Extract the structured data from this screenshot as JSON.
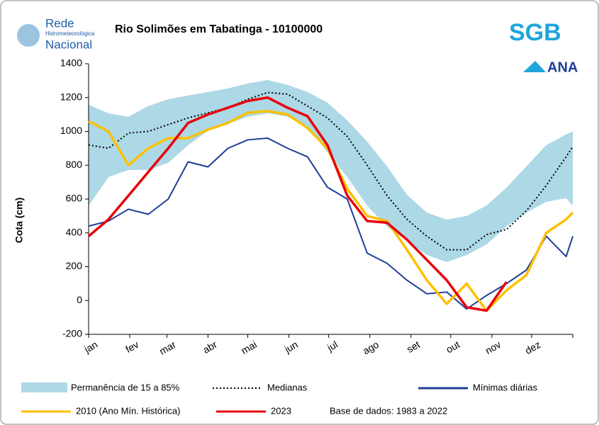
{
  "chart_data": {
    "type": "line",
    "title": "Rio Solimões em Tabatinga - 10100000",
    "y_label": "Cota (cm)",
    "note": "Base de dados: 1983 a 2022",
    "logos": {
      "rede": "Rede",
      "rede_sub": "Hidrometeorológica",
      "rede_nac": "Nacional",
      "sgb": "SGB",
      "ana": "ANA"
    },
    "x": [
      0,
      15,
      30,
      45,
      60,
      75,
      90,
      105,
      120,
      135,
      150,
      165,
      180,
      195,
      210,
      225,
      240,
      255,
      270,
      285,
      300,
      315,
      330,
      345,
      360,
      365
    ],
    "xlim": [
      0,
      365
    ],
    "xticks": [
      {
        "value": 0,
        "label": "jan"
      },
      {
        "value": 31,
        "label": "fev"
      },
      {
        "value": 59,
        "label": "mar"
      },
      {
        "value": 90,
        "label": "abr"
      },
      {
        "value": 120,
        "label": "mai"
      },
      {
        "value": 151,
        "label": "jun"
      },
      {
        "value": 181,
        "label": "jul"
      },
      {
        "value": 212,
        "label": "ago"
      },
      {
        "value": 243,
        "label": "set"
      },
      {
        "value": 273,
        "label": "out"
      },
      {
        "value": 304,
        "label": "nov"
      },
      {
        "value": 334,
        "label": "dez"
      }
    ],
    "ylim": [
      -200,
      1400
    ],
    "yticks": [
      -200,
      0,
      200,
      400,
      600,
      800,
      1000,
      1200,
      1400
    ],
    "band": {
      "name": "Permanência de 15 a 85%",
      "color": "#add8e6",
      "upper": [
        1157,
        1107,
        1087,
        1150,
        1190,
        1212,
        1233,
        1254,
        1283,
        1304,
        1275,
        1233,
        1170,
        1065,
        940,
        793,
        625,
        520,
        478,
        500,
        562,
        667,
        793,
        919,
        982,
        1000
      ],
      "lower": [
        560,
        730,
        772,
        772,
        814,
        919,
        1003,
        1045,
        1087,
        1107,
        1087,
        1024,
        877,
        730,
        560,
        437,
        353,
        269,
        227,
        269,
        332,
        437,
        520,
        583,
        605,
        560
      ]
    },
    "series": [
      {
        "name": "Medianas",
        "color": "#000000",
        "dash": true,
        "values": [
          920,
          900,
          990,
          1000,
          1040,
          1080,
          1110,
          1140,
          1190,
          1230,
          1220,
          1150,
          1080,
          970,
          800,
          620,
          480,
          380,
          300,
          300,
          390,
          420,
          530,
          680,
          850,
          910
        ]
      },
      {
        "name": "Mínimas diárias",
        "color": "#1f3f99",
        "values": [
          440,
          470,
          540,
          510,
          600,
          820,
          790,
          900,
          950,
          960,
          900,
          850,
          670,
          600,
          280,
          220,
          120,
          40,
          50,
          -50,
          30,
          100,
          180,
          380,
          260,
          380
        ]
      },
      {
        "name": "2010 (Ano Mín. Histórica)",
        "color": "#ffc000",
        "values": [
          1060,
          1000,
          800,
          900,
          960,
          960,
          1010,
          1050,
          1110,
          1120,
          1100,
          1020,
          900,
          660,
          500,
          470,
          300,
          120,
          -20,
          100,
          -60,
          60,
          150,
          400,
          480,
          520
        ]
      },
      {
        "name": "2023",
        "color": "#e8000b",
        "values": [
          380,
          480,
          620,
          760,
          900,
          1050,
          1100,
          1140,
          1180,
          1200,
          1140,
          1090,
          920,
          620,
          470,
          460,
          360,
          240,
          120,
          -40,
          -60,
          110,
          null,
          null,
          null,
          null
        ]
      }
    ]
  }
}
